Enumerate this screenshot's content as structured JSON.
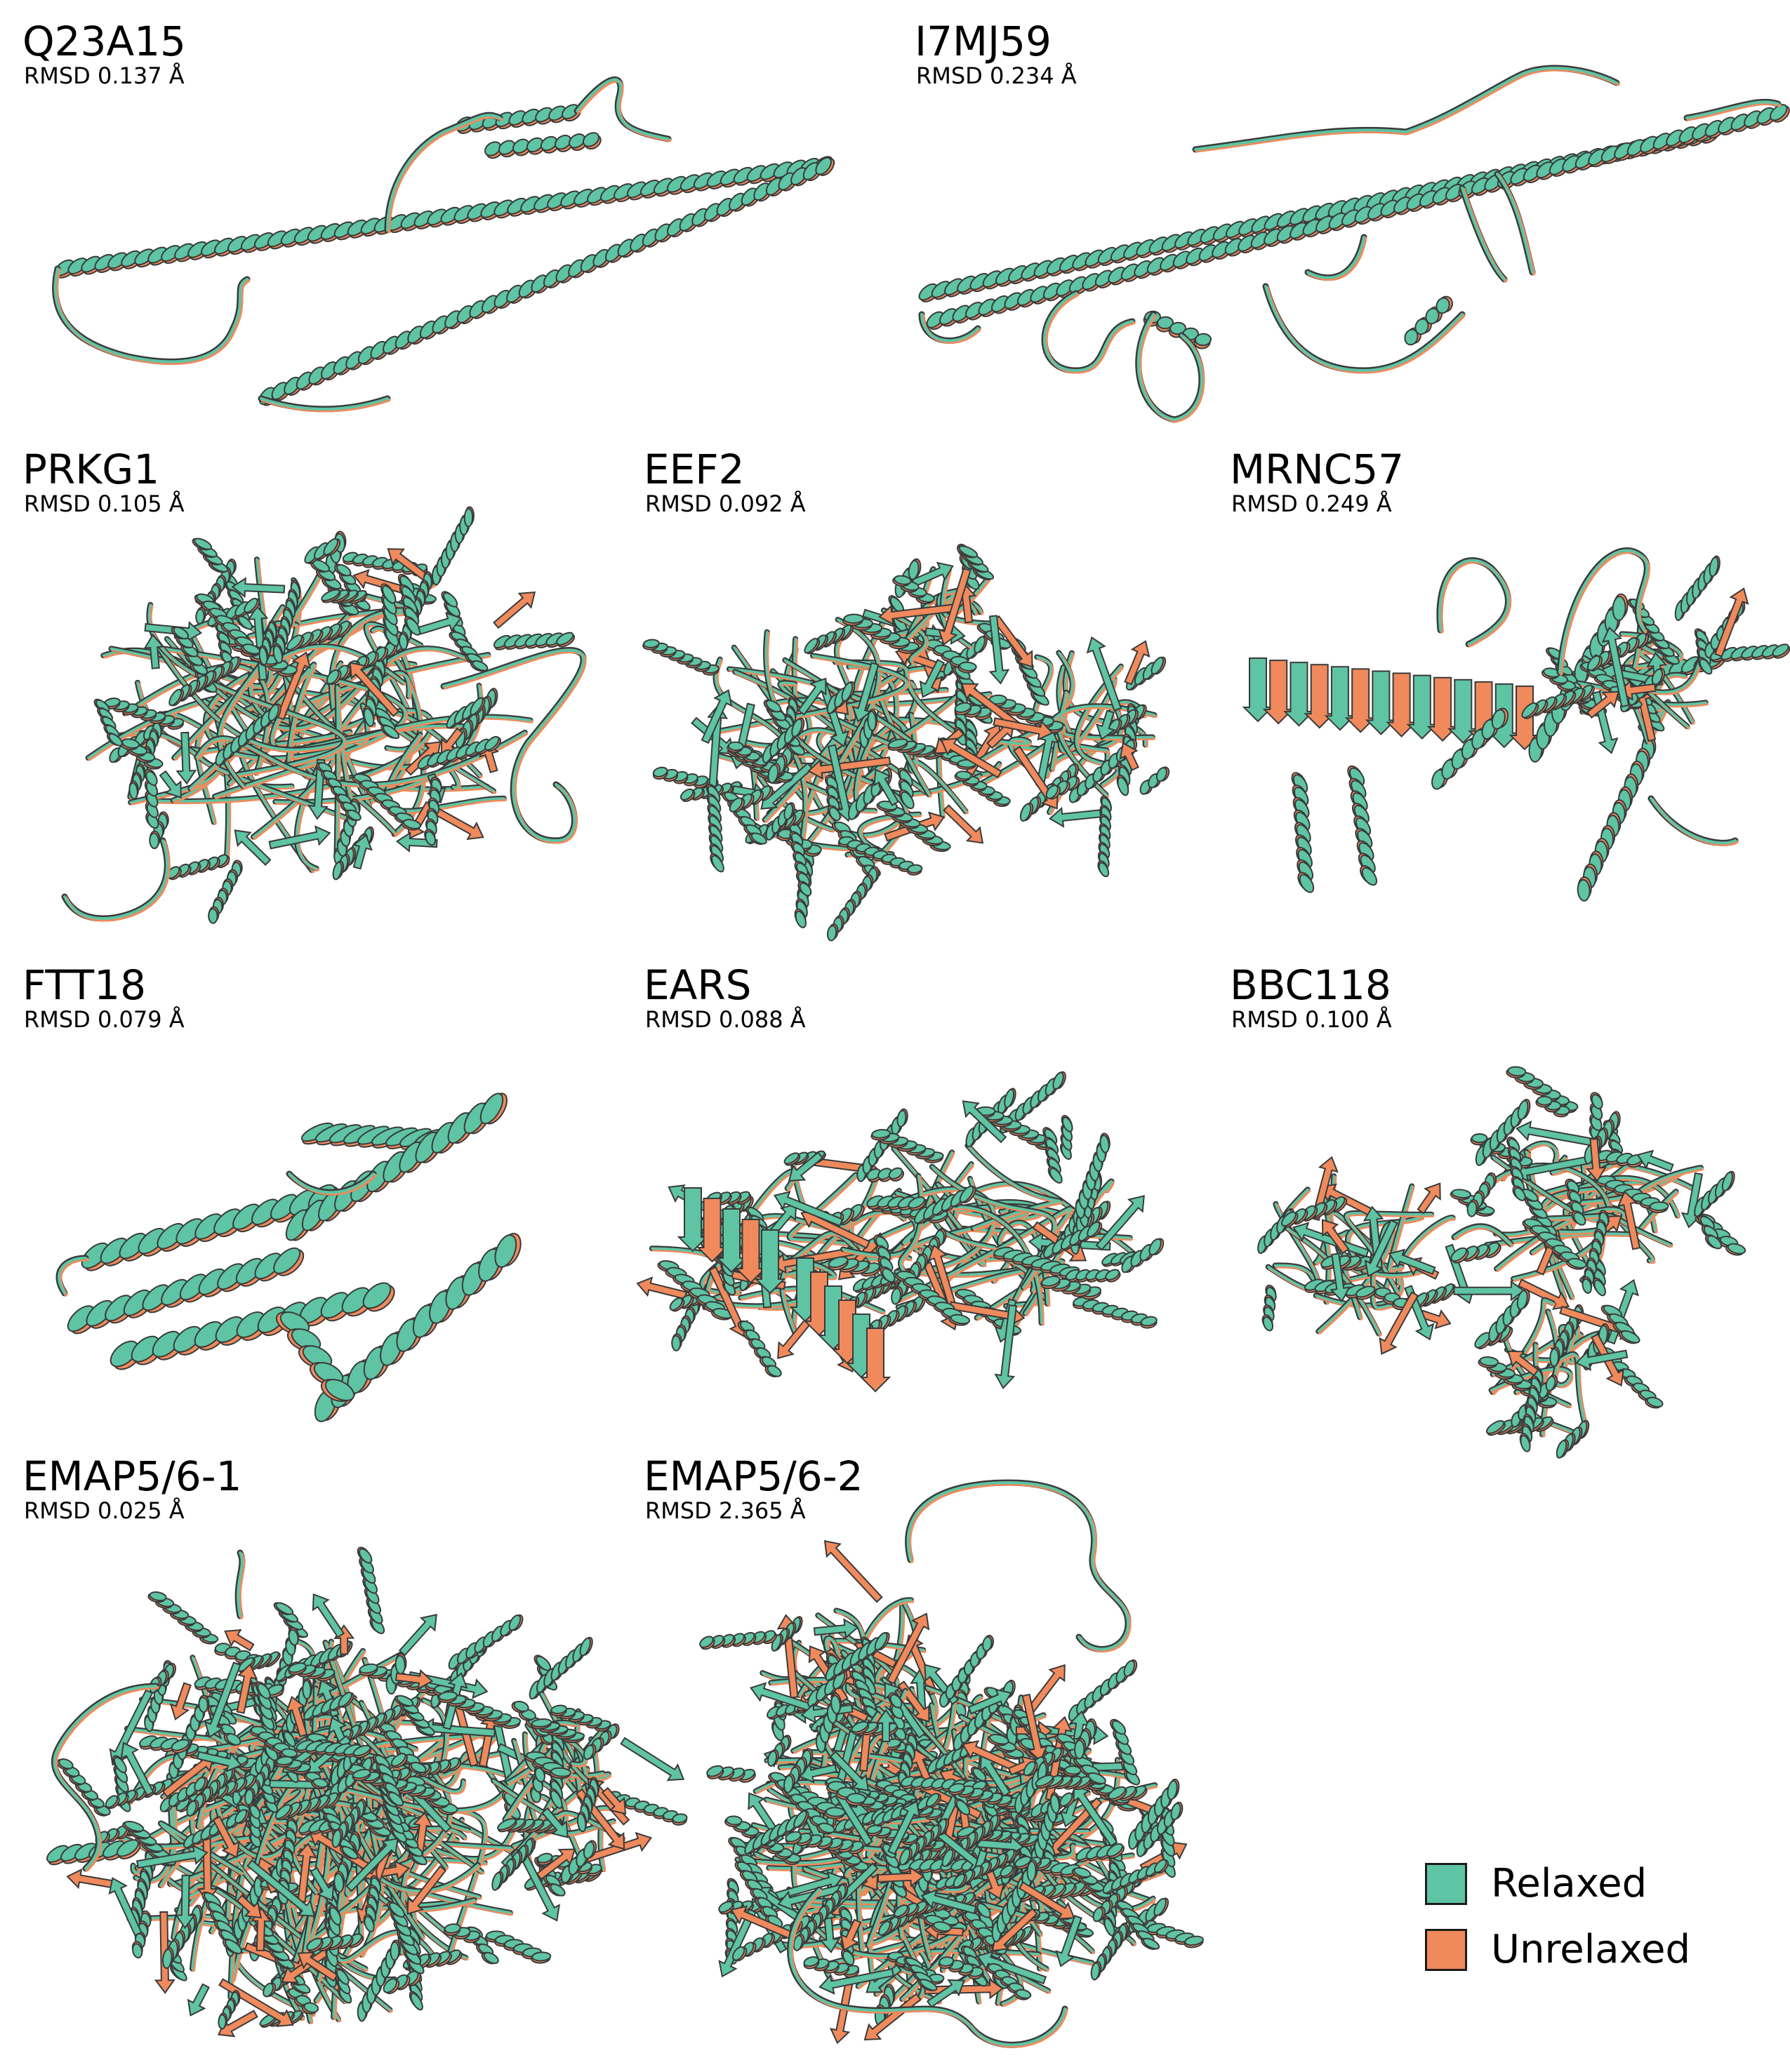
{
  "colors": {
    "relaxed": "#5ec4a4",
    "unrelaxed": "#f08a5c",
    "outline": "#3a3a3a"
  },
  "panels": [
    {
      "name": "Q23A15",
      "rmsd": "RMSD 0.137 Å"
    },
    {
      "name": "I7MJ59",
      "rmsd": "RMSD 0.234 Å"
    },
    {
      "name": "PRKG1",
      "rmsd": "RMSD 0.105 Å"
    },
    {
      "name": "EEF2",
      "rmsd": "RMSD 0.092 Å"
    },
    {
      "name": "MRNC57",
      "rmsd": "RMSD 0.249 Å"
    },
    {
      "name": "FTT18",
      "rmsd": "RMSD 0.079 Å"
    },
    {
      "name": "EARS",
      "rmsd": "RMSD 0.088 Å"
    },
    {
      "name": "BBC118",
      "rmsd": "RMSD 0.100 Å"
    },
    {
      "name": "EMAP5/6-1",
      "rmsd": "RMSD 0.025 Å"
    },
    {
      "name": "EMAP5/6-2",
      "rmsd": "RMSD 2.365 Å"
    }
  ],
  "legend": [
    {
      "label": "Relaxed"
    },
    {
      "label": "Unrelaxed"
    }
  ]
}
